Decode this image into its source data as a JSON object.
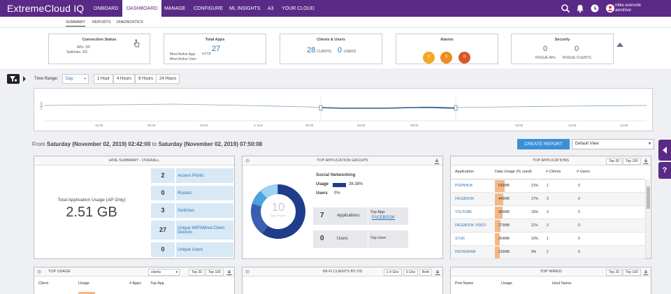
{
  "brand": "ExtremeCloud IQ",
  "nav": [
    "ONBOARD",
    "DASHBOARD",
    "MANAGE",
    "CONFIGURE",
    "ML INSIGHTS",
    "A3",
    "YOUR CLOUD"
  ],
  "user": {
    "name": "mike eversole",
    "org": "aerohive"
  },
  "subnav": [
    "SUMMARY",
    "REPORTS",
    "DIAGNOSTICS"
  ],
  "connection_status": {
    "title": "Connection Status",
    "aps": "APs: 2/0",
    "switches": "Switches: 3/0"
  },
  "total_apps": {
    "title": "Total Apps",
    "value": "27",
    "most_active_app_label": "Most Active App:",
    "most_active_app": "HTTP",
    "most_active_user_label": "Most Active User:"
  },
  "clients_users": {
    "title": "Clients & Users",
    "clients": "28",
    "clients_label": "CLIENTS",
    "users": "0",
    "users_label": "USERS"
  },
  "alarms": {
    "title": "Alarms",
    "values": [
      "0",
      "0",
      "0"
    ],
    "colors": [
      "#f5a623",
      "#f08a24",
      "#d9572a"
    ]
  },
  "security": {
    "title": "Security",
    "rogue_aps": "0",
    "rogue_aps_label": "ROGUE APs",
    "rogue_clients": "0",
    "rogue_clients_label": "ROGUE CLIENTS"
  },
  "time_range": {
    "label": "Time Range:",
    "selected": "Day",
    "buttons": [
      "1 Hour",
      "4 Hours",
      "8 Hours",
      "24 Hours"
    ]
  },
  "timeline": {
    "y_label": "Client",
    "x_ticks": [
      "16:00",
      "20:00",
      "22:00",
      "2. Nov",
      "02:00",
      "04:00",
      "06:00",
      "10:00",
      "12:00",
      "14:00"
    ]
  },
  "from_text": {
    "from": "From",
    "start": "Saturday (November 02, 2019) 02:42:00",
    "to": "to",
    "end": "Saturday (November 02, 2019) 07:50:08"
  },
  "create_report": "CREATE REPORT",
  "view_select": "Default View",
  "hive_summary": {
    "title": "HIVE SUMMARY - OVERALL",
    "usage_label": "Total Application Usage (AP Only)",
    "usage_value": "2.51 GB",
    "tiles": [
      {
        "num": "2",
        "label": "Access Points"
      },
      {
        "num": "0",
        "label": "Routers"
      },
      {
        "num": "3",
        "label": "Switches"
      },
      {
        "num": "27",
        "label": "Unique WiFi/Wired Client Devices"
      },
      {
        "num": "0",
        "label": "Unique Users"
      }
    ]
  },
  "top_app_groups": {
    "title": "TOP APPLICATION GROUPS",
    "donut_num": "10",
    "donut_sub": "App Groups",
    "group": "Social Networking",
    "usage_label": "Usage",
    "usage_pct": "38.38%",
    "users_label": "Users",
    "users_pct": "0%",
    "applications_num": "7",
    "applications_label": "Applications",
    "top_app_label": "Top App:",
    "top_app": "FACEBOOK",
    "users_num": "0",
    "users_box_label": "Users",
    "top_user_label": "Top User:"
  },
  "top_applications": {
    "title": "TOP APPLICATIONS",
    "btn_top20": "Top 20",
    "btn_top100": "Top 100",
    "headers": [
      "Application",
      "Data Usage (% used)",
      "# Clients",
      "# Users"
    ],
    "rows": [
      {
        "app": "PORNHUB",
        "usage": "543MB",
        "pct": "21%",
        "clients": "1",
        "users": "0"
      },
      {
        "app": "FACEBOOK",
        "usage": "443MB",
        "pct": "17%",
        "clients": "3",
        "users": "0"
      },
      {
        "app": "YOUTUBE",
        "usage": "400MB",
        "pct": "16%",
        "clients": "3",
        "users": "0"
      },
      {
        "app": "FACEBOOK VIDEO",
        "usage": "273MB",
        "pct": "11%",
        "clients": "2",
        "users": "0"
      },
      {
        "app": "STUN",
        "usage": "264MB",
        "pct": "10%",
        "clients": "1",
        "users": "0"
      },
      {
        "app": "INSTAGRAM",
        "usage": "233MB",
        "pct": "9%",
        "clients": "2",
        "users": "0"
      }
    ]
  },
  "top_usage": {
    "title": "TOP USAGE",
    "select": "clients",
    "btn_top20": "Top 20",
    "btn_top100": "Top 100",
    "headers": [
      "Client",
      "Usage",
      "# Apps",
      "Top App"
    ]
  },
  "wifi_os": {
    "title": "WI-FI CLIENTS BY OS",
    "buttons": [
      "2.4 Ghz",
      "5 Ghz",
      "Both"
    ]
  },
  "top_wired": {
    "title": "TOP WIRED",
    "btn_top20": "Top 20",
    "btn_top100": "Top 100",
    "headers": [
      "Port Name",
      "Usage",
      "Host Name"
    ]
  }
}
